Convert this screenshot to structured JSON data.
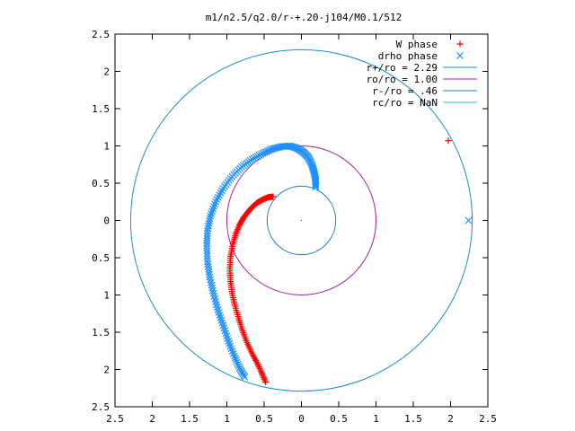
{
  "chart_data": {
    "type": "scatter",
    "title": "m1/n2.5/q2.0/r-+.20-j104/M0.1/512",
    "xlabel": "",
    "ylabel": "",
    "xlim": [
      -2.5,
      2.5
    ],
    "ylim": [
      -2.5,
      2.5
    ],
    "x_ticks": [
      {
        "value": -2.5,
        "label": "2.5"
      },
      {
        "value": -2,
        "label": "2"
      },
      {
        "value": -1.5,
        "label": "1.5"
      },
      {
        "value": -1,
        "label": "1"
      },
      {
        "value": -0.5,
        "label": "0.5"
      },
      {
        "value": 0,
        "label": "0"
      },
      {
        "value": 0.5,
        "label": "0.5"
      },
      {
        "value": 1,
        "label": "1"
      },
      {
        "value": 1.5,
        "label": "1.5"
      },
      {
        "value": 2,
        "label": "2"
      },
      {
        "value": 2.5,
        "label": "2.5"
      }
    ],
    "y_ticks": [
      {
        "value": 2.5,
        "label": "2.5"
      },
      {
        "value": 2,
        "label": "2"
      },
      {
        "value": 1.5,
        "label": "1.5"
      },
      {
        "value": 1,
        "label": "1"
      },
      {
        "value": 0.5,
        "label": "0.5"
      },
      {
        "value": 0,
        "label": "0"
      },
      {
        "value": -0.5,
        "label": "0.5"
      },
      {
        "value": -1,
        "label": "1"
      },
      {
        "value": -1.5,
        "label": "1.5"
      },
      {
        "value": -2,
        "label": "2"
      },
      {
        "value": -2.5,
        "label": "2.5"
      }
    ],
    "grid": false,
    "legend_position": "top-right",
    "series": [
      {
        "name": "W phase",
        "kind": "points",
        "marker": "plus",
        "color": "#ff0000",
        "points": [
          [
            -0.38,
            0.32
          ],
          [
            -0.45,
            0.31
          ],
          [
            -0.52,
            0.28
          ],
          [
            -0.59,
            0.24
          ],
          [
            -0.66,
            0.18
          ],
          [
            -0.72,
            0.11
          ],
          [
            -0.78,
            0.03
          ],
          [
            -0.83,
            -0.06
          ],
          [
            -0.88,
            -0.18
          ],
          [
            -0.92,
            -0.32
          ],
          [
            -0.95,
            -0.48
          ],
          [
            -0.96,
            -0.65
          ],
          [
            -0.95,
            -0.82
          ],
          [
            -0.93,
            -0.98
          ],
          [
            -0.89,
            -1.15
          ],
          [
            -0.84,
            -1.32
          ],
          [
            -0.79,
            -1.48
          ],
          [
            -0.73,
            -1.64
          ],
          [
            -0.66,
            -1.79
          ],
          [
            -0.59,
            -1.92
          ],
          [
            -0.53,
            -2.05
          ],
          [
            -0.48,
            -2.17
          ]
        ],
        "extra_points": [
          [
            1.97,
            1.07
          ]
        ]
      },
      {
        "name": "drho phase",
        "kind": "points",
        "marker": "cross",
        "color": "#1e90ff",
        "points": [
          [
            0.19,
            0.45
          ],
          [
            0.19,
            0.55
          ],
          [
            0.17,
            0.65
          ],
          [
            0.14,
            0.75
          ],
          [
            0.09,
            0.85
          ],
          [
            0.02,
            0.92
          ],
          [
            -0.06,
            0.97
          ],
          [
            -0.16,
            1.0
          ],
          [
            -0.27,
            0.99
          ],
          [
            -0.39,
            0.96
          ],
          [
            -0.52,
            0.9
          ],
          [
            -0.66,
            0.82
          ],
          [
            -0.8,
            0.72
          ],
          [
            -0.93,
            0.59
          ],
          [
            -1.05,
            0.43
          ],
          [
            -1.15,
            0.25
          ],
          [
            -1.22,
            0.06
          ],
          [
            -1.26,
            -0.14
          ],
          [
            -1.27,
            -0.34
          ],
          [
            -1.26,
            -0.55
          ],
          [
            -1.23,
            -0.76
          ],
          [
            -1.18,
            -0.98
          ],
          [
            -1.12,
            -1.2
          ],
          [
            -1.05,
            -1.41
          ],
          [
            -0.98,
            -1.62
          ],
          [
            -0.9,
            -1.82
          ],
          [
            -0.83,
            -1.98
          ],
          [
            -0.76,
            -2.1
          ]
        ],
        "extra_points": [
          [
            2.24,
            0.0
          ]
        ]
      },
      {
        "name": "r+/ro = 2.29",
        "kind": "circle",
        "radius": 2.29,
        "color": "#1e8fc8"
      },
      {
        "name": "ro/ro = 1.00",
        "kind": "circle",
        "radius": 1.0,
        "color": "#a020a0"
      },
      {
        "name": "r-/ro = .46",
        "kind": "circle",
        "radius": 0.46,
        "color": "#1e7fc8"
      },
      {
        "name": "rc/ro = NaN",
        "kind": "circle",
        "radius": null,
        "color": "#20c8c8"
      }
    ]
  }
}
